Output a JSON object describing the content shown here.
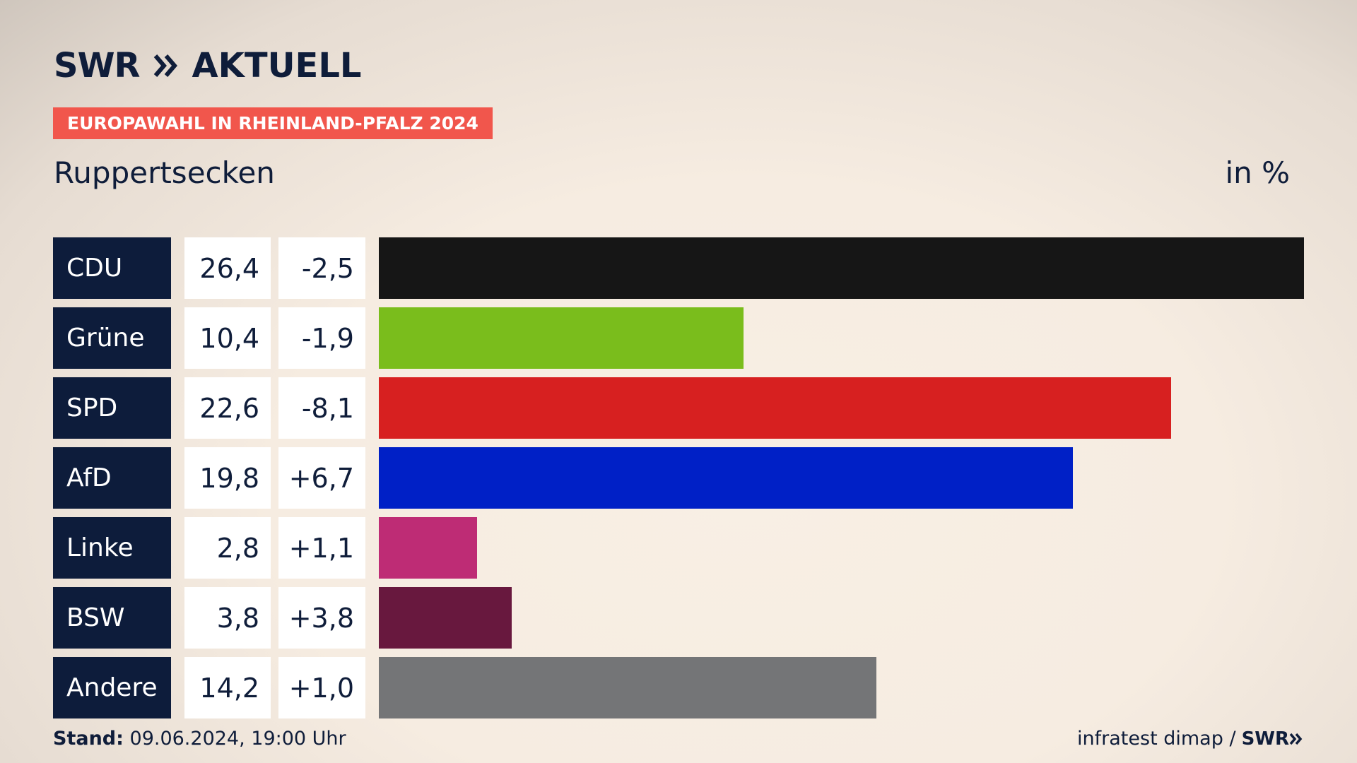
{
  "header": {
    "logo_swr": "SWR",
    "logo_aktuell": "AKTUELL",
    "tag": "EUROPAWAHL IN RHEINLAND-PFALZ 2024",
    "place": "Ruppertsecken",
    "unit": "in %"
  },
  "chart_data": {
    "type": "bar",
    "title": "Ruppertsecken",
    "unit": "in %",
    "categories": [
      "CDU",
      "Grüne",
      "SPD",
      "AfD",
      "Linke",
      "BSW",
      "Andere"
    ],
    "values": [
      26.4,
      10.4,
      22.6,
      19.8,
      2.8,
      3.8,
      14.2
    ],
    "value_labels": [
      "26,4",
      "10,4",
      "22,6",
      "19,8",
      "2,8",
      "3,8",
      "14,2"
    ],
    "diff_labels": [
      "-2,5",
      "-1,9",
      "-8,1",
      "+6,7",
      "+1,1",
      "+3,8",
      "+1,0"
    ],
    "colors": [
      "#161616",
      "#7abd1c",
      "#d72020",
      "#0020c6",
      "#be2c75",
      "#68183e",
      "#747577"
    ],
    "xlim": [
      0,
      26.4
    ]
  },
  "footer": {
    "stand_label": "Stand:",
    "stand_value": "09.06.2024, 19:00 Uhr",
    "source": "infratest dimap /",
    "source_logo": "SWR"
  }
}
